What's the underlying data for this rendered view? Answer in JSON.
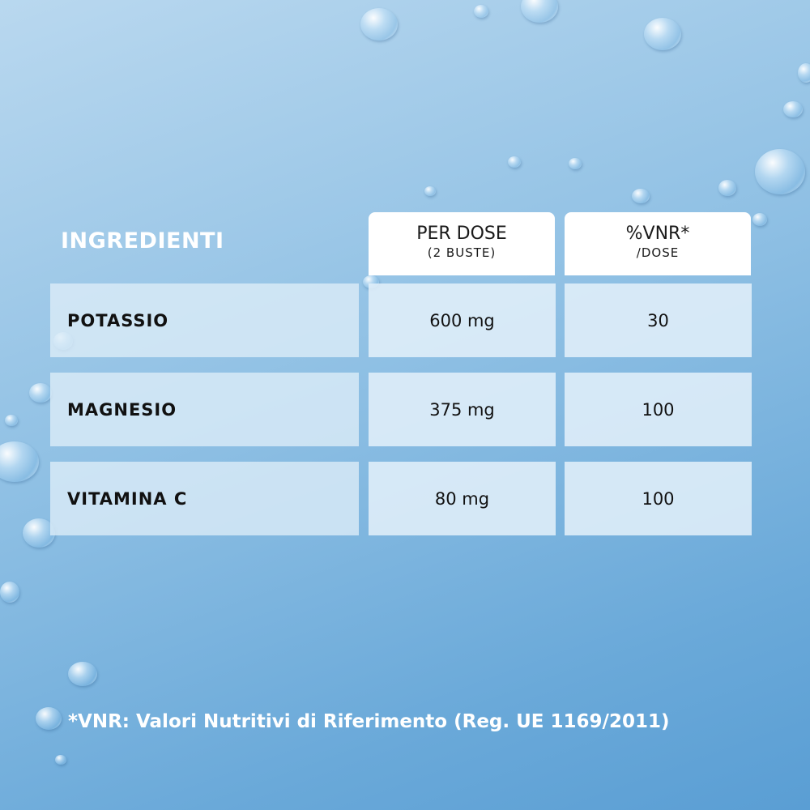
{
  "header": {
    "title": "INGREDIENTI"
  },
  "table": {
    "columns": [
      {
        "label": "PER DOSE",
        "sublabel": "(2 BUSTE)"
      },
      {
        "label": "%VNR*",
        "sublabel": "/DOSE"
      }
    ],
    "rows": [
      [
        "POTASSIO",
        "600 mg",
        "30"
      ],
      [
        "MAGNESIO",
        "375 mg",
        "100"
      ],
      [
        "VITAMINA C",
        "80 mg",
        "100"
      ]
    ]
  },
  "footnote": "*VNR: Valori Nutritivi di Riferimento (Reg. UE 1169/2011)"
}
